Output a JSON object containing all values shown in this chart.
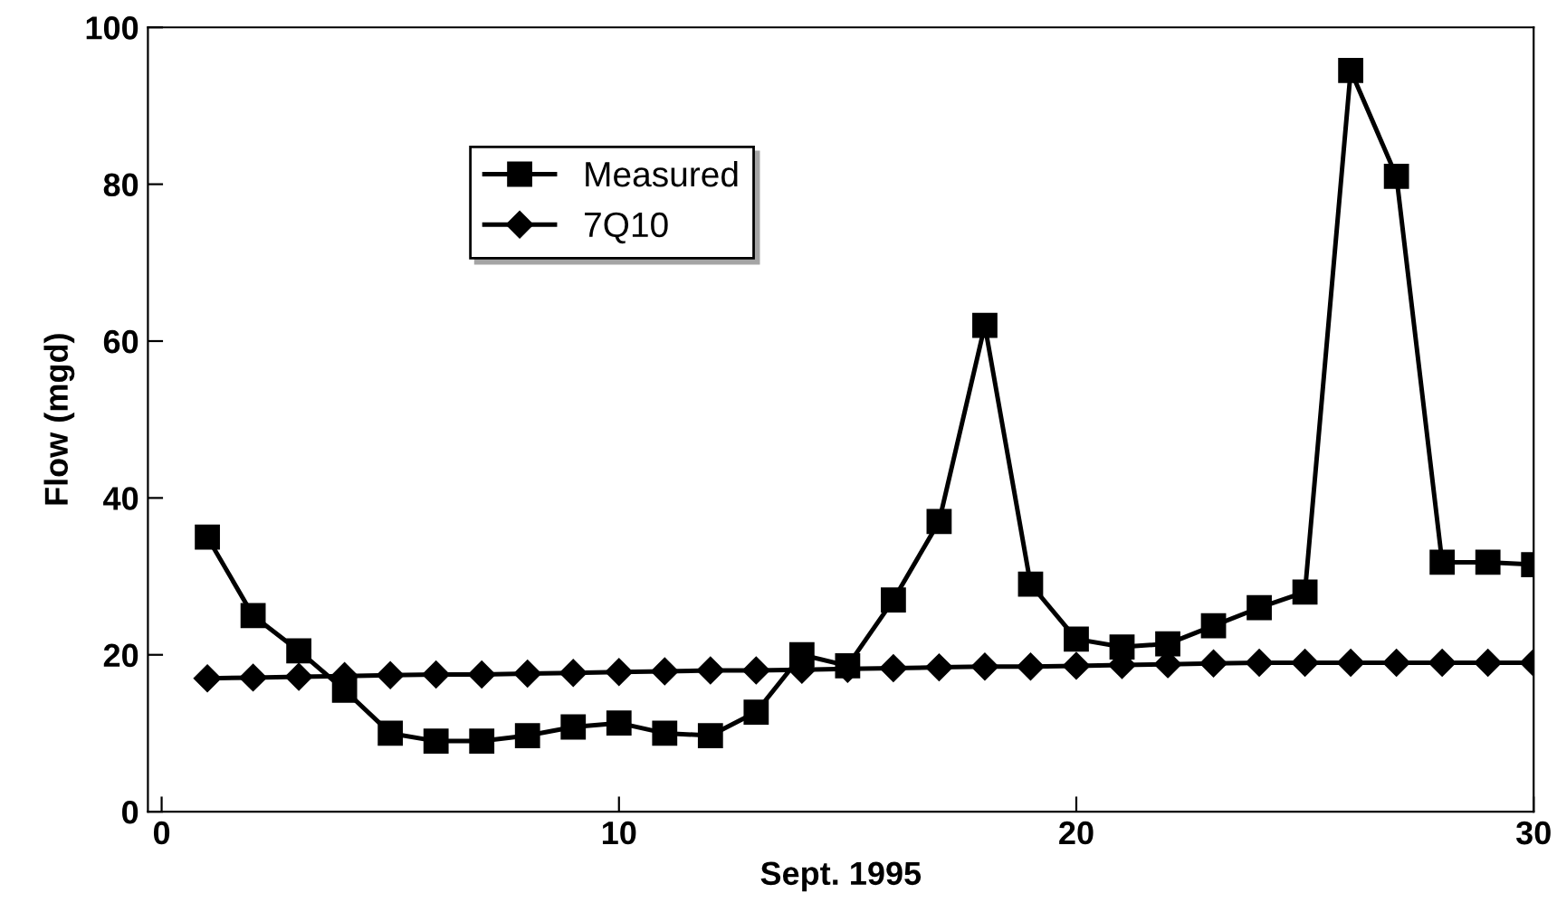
{
  "chart_data": {
    "type": "line",
    "xlabel": "Sept. 1995",
    "ylabel": "Flow (mgd)",
    "x": [
      1,
      2,
      3,
      4,
      5,
      6,
      7,
      8,
      9,
      10,
      11,
      12,
      13,
      14,
      15,
      16,
      17,
      18,
      19,
      20,
      21,
      22,
      23,
      24,
      25,
      26,
      27,
      28,
      29,
      30
    ],
    "series": [
      {
        "name": "Measured",
        "color": "#000000",
        "marker": "square",
        "values": [
          35,
          25,
          20.5,
          15.5,
          10,
          9,
          9,
          9.7,
          10.8,
          11.3,
          10,
          9.7,
          12.7,
          20,
          18.6,
          27,
          37,
          62,
          29,
          22,
          21,
          21.4,
          23.7,
          26,
          28,
          94.5,
          81,
          31.8,
          31.8,
          31.5
        ]
      },
      {
        "name": "7Q10",
        "color": "#000000",
        "marker": "diamond",
        "values": [
          17,
          17.1,
          17.2,
          17.3,
          17.4,
          17.5,
          17.5,
          17.6,
          17.7,
          17.8,
          17.9,
          18,
          18,
          18.1,
          18.2,
          18.3,
          18.4,
          18.5,
          18.5,
          18.6,
          18.7,
          18.8,
          18.9,
          19,
          19,
          19,
          19,
          19,
          19,
          19
        ]
      }
    ],
    "xlim": [
      -0.3,
      30
    ],
    "ylim": [
      0,
      100
    ],
    "xticks": [
      0,
      10,
      20,
      30
    ],
    "yticks": [
      0,
      20,
      40,
      60,
      80,
      100
    ],
    "grid": false,
    "legend": "top left",
    "line_style": "solid"
  }
}
